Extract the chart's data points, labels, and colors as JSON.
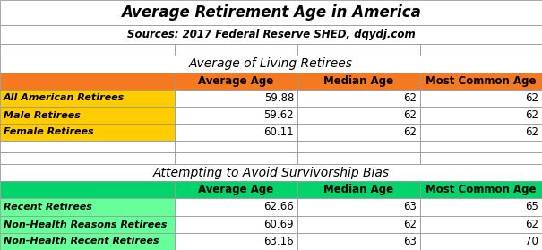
{
  "title": "Average Retirement Age in America",
  "subtitle": "Sources: 2017 Federal Reserve SHED, dqydj.com",
  "section1_title": "Average of Living Retirees",
  "section2_title": "Attempting to Avoid Survivorship Bias",
  "col_headers": [
    "Average Age",
    "Median Age",
    "Most Common Age"
  ],
  "section1_rows": [
    {
      "label": "All American Retirees",
      "avg": "59.88",
      "med": "62",
      "mode": "62"
    },
    {
      "label": "Male Retirees",
      "avg": "59.62",
      "med": "62",
      "mode": "62"
    },
    {
      "label": "Female Retirees",
      "avg": "60.11",
      "med": "62",
      "mode": "62"
    }
  ],
  "section2_rows": [
    {
      "label": "Recent Retirees",
      "avg": "62.66",
      "med": "63",
      "mode": "65"
    },
    {
      "label": "Non-Health Reasons Retirees",
      "avg": "60.69",
      "med": "62",
      "mode": "62"
    },
    {
      "label": "Non-Health Recent Retirees",
      "avg": "63.16",
      "med": "63",
      "mode": "70"
    }
  ],
  "color_orange_header": "#F47920",
  "color_green_header": "#00D46A",
  "color_yellow_row": "#FFCC00",
  "color_green_row": "#66FF99",
  "color_white": "#FFFFFF",
  "border_color": "#999999",
  "fig_w": 6.05,
  "fig_h": 2.79,
  "dpi": 100
}
